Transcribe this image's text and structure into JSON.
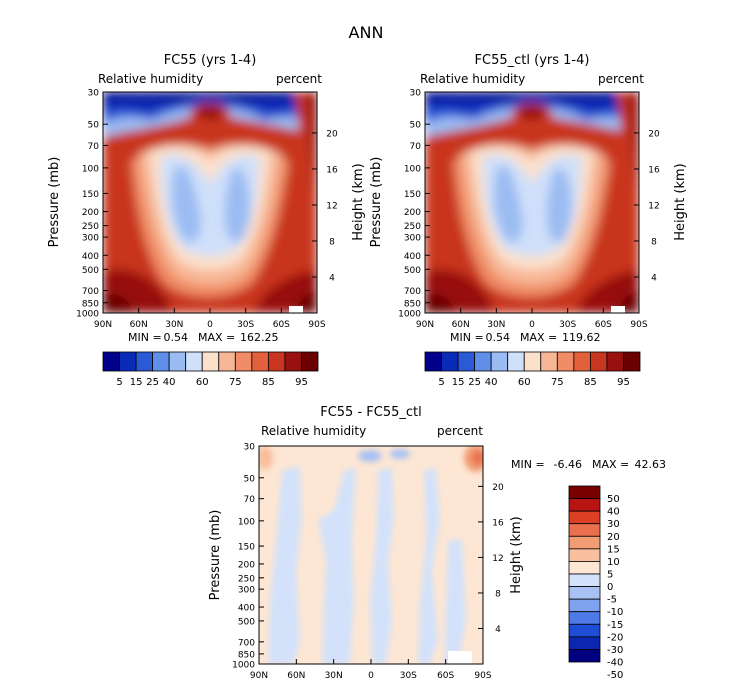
{
  "figure_title": "ANN",
  "colors": {
    "rh_palette": [
      "#00008b",
      "#0a2bb8",
      "#2a5ad6",
      "#5f8fe8",
      "#9bbcf2",
      "#cfe0fa",
      "#fbe0cc",
      "#f7b796",
      "#f08c66",
      "#e3603d",
      "#c8361f",
      "#981010",
      "#6b0000"
    ],
    "diff_palette": [
      "#000080",
      "#0b27b0",
      "#1f4ed6",
      "#4d7ae6",
      "#7ea2ee",
      "#a9c2f4",
      "#d3e2fa",
      "#fde6d3",
      "#f8c09e",
      "#f29d76",
      "#ea6f4c",
      "#dd3f24",
      "#b81414",
      "#7a0000"
    ],
    "field_pale": "#fde6d3",
    "field_blue": "#d3e2fa"
  },
  "chart_data": [
    {
      "type": "heatmap",
      "id": "model",
      "title": "FC55 (yrs 1-4)",
      "left_label": "Relative humidity",
      "right_label": "percent",
      "ylabel": "Pressure (mb)",
      "ylabel_right": "Height (km)",
      "x_ticks": [
        "90N",
        "60N",
        "30N",
        "0",
        "30S",
        "60S",
        "90S"
      ],
      "x_values": [
        90,
        60,
        30,
        0,
        -30,
        -60,
        -90
      ],
      "y_ticks": [
        30,
        50,
        70,
        100,
        150,
        200,
        250,
        300,
        400,
        500,
        700,
        850,
        1000
      ],
      "ylim": [
        1000,
        30
      ],
      "height_ticks": [
        20,
        16,
        12,
        8,
        4
      ],
      "stats": {
        "min_label": "MIN =",
        "min": "0.54",
        "max_label": "MAX =",
        "max": "162.25"
      }
    },
    {
      "type": "heatmap",
      "id": "control",
      "title": "FC55_ctl (yrs 1-4)",
      "left_label": "Relative humidity",
      "right_label": "percent",
      "ylabel": "Pressure (mb)",
      "ylabel_right": "Height (km)",
      "x_ticks": [
        "90N",
        "60N",
        "30N",
        "0",
        "30S",
        "60S",
        "90S"
      ],
      "x_values": [
        90,
        60,
        30,
        0,
        -30,
        -60,
        -90
      ],
      "y_ticks": [
        30,
        50,
        70,
        100,
        150,
        200,
        250,
        300,
        400,
        500,
        700,
        850,
        1000
      ],
      "ylim": [
        1000,
        30
      ],
      "height_ticks": [
        20,
        16,
        12,
        8,
        4
      ],
      "stats": {
        "min_label": "MIN =",
        "min": "0.54",
        "max_label": "MAX =",
        "max": "119.62"
      }
    },
    {
      "type": "heatmap",
      "id": "difference",
      "title": "FC55 - FC55_ctl",
      "left_label": "Relative humidity",
      "right_label": "percent",
      "ylabel": "Pressure (mb)",
      "ylabel_right": "Height (km)",
      "x_ticks": [
        "90N",
        "60N",
        "30N",
        "0",
        "30S",
        "60S",
        "90S"
      ],
      "x_values": [
        90,
        60,
        30,
        0,
        -30,
        -60,
        -90
      ],
      "y_ticks": [
        30,
        50,
        70,
        100,
        150,
        200,
        250,
        300,
        400,
        500,
        700,
        850,
        1000
      ],
      "ylim": [
        1000,
        30
      ],
      "height_ticks": [
        20,
        16,
        12,
        8,
        4
      ],
      "stats": {
        "min_label": "MIN =",
        "min": "-6.46",
        "max_label": "MAX =",
        "max": "42.63"
      }
    }
  ],
  "colorbar_rh": {
    "labels": [
      "5",
      "15",
      "25",
      "40",
      "60",
      "75",
      "85",
      "95"
    ]
  },
  "colorbar_diff": {
    "labels": [
      "50",
      "40",
      "30",
      "20",
      "15",
      "10",
      "5",
      "0",
      "-5",
      "-10",
      "-15",
      "-20",
      "-30",
      "-40",
      "-50"
    ]
  }
}
